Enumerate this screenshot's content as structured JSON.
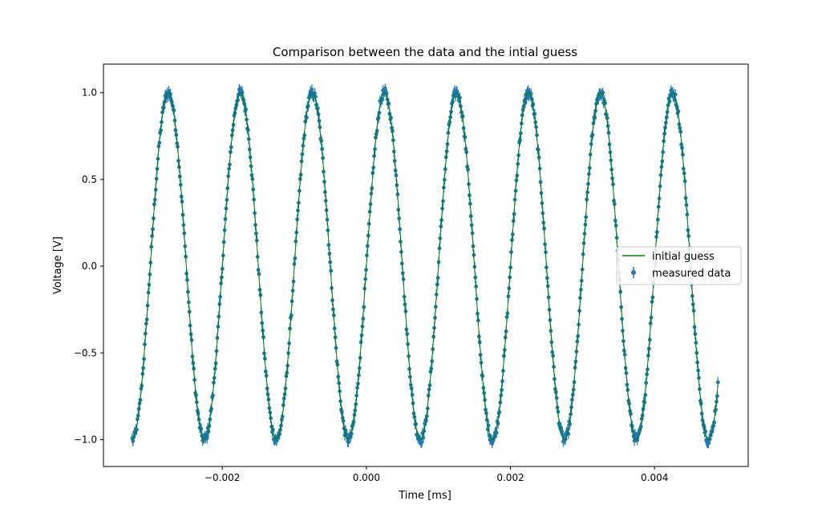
{
  "chart_data": {
    "type": "scatter",
    "title": "Comparison between the data and the intial guess",
    "xlabel": "Time [ms]",
    "ylabel": "Voltage [V]",
    "xlim": [
      -0.00365,
      0.0053
    ],
    "ylim": [
      -1.155,
      1.165
    ],
    "xticks": [
      -0.002,
      0.0,
      0.002,
      0.004
    ],
    "xtick_labels": [
      "−0.002",
      "0.000",
      "0.002",
      "0.004"
    ],
    "yticks": [
      1.0,
      0.5,
      0.0,
      -0.5,
      -1.0
    ],
    "ytick_labels": [
      "1.0",
      "0.5",
      "0.0",
      "−0.5",
      "−1.0"
    ],
    "grid": false,
    "legend_position": "center-right",
    "signal": {
      "amplitude": 1.0,
      "period": 0.001,
      "peak_time": 0.00025,
      "x_start": -0.00325,
      "x_end": 0.00488,
      "num_points": 800,
      "noise_amplitude": 0.025,
      "error_bar": 0.03
    },
    "series": [
      {
        "name": "initial guess",
        "kind": "line",
        "color": "#008000"
      },
      {
        "name": "measured data",
        "kind": "errorbar",
        "color": "#1f77b4"
      }
    ]
  }
}
